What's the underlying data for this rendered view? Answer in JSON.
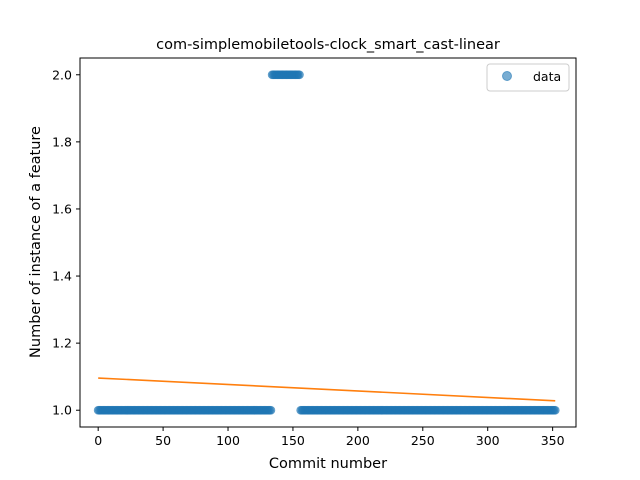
{
  "chart_data": {
    "type": "scatter",
    "title": "com-simplemobiletools-clock_smart_cast-linear",
    "xlabel": "Commit number",
    "ylabel": "Number of instance of a feature",
    "xlim": [
      -14,
      368
    ],
    "ylim": [
      0.95,
      2.05
    ],
    "xticks": [
      0,
      50,
      100,
      150,
      200,
      250,
      300,
      350
    ],
    "yticks": [
      1.0,
      1.2,
      1.4,
      1.6,
      1.8,
      2.0
    ],
    "legend": {
      "position": "top-right",
      "entries": [
        "data"
      ]
    },
    "grid": false,
    "series": [
      {
        "name": "data",
        "kind": "scatter",
        "color": "#1f77b4",
        "alpha": 0.6,
        "segments": [
          {
            "x_start": 0,
            "x_end": 133,
            "y": 1.0
          },
          {
            "x_start": 134,
            "x_end": 155,
            "y": 2.0
          },
          {
            "x_start": 156,
            "x_end": 352,
            "y": 1.0
          }
        ]
      },
      {
        "kind": "line",
        "color": "#ff7f0e",
        "x": [
          0,
          352
        ],
        "y": [
          1.096,
          1.028
        ]
      }
    ]
  }
}
